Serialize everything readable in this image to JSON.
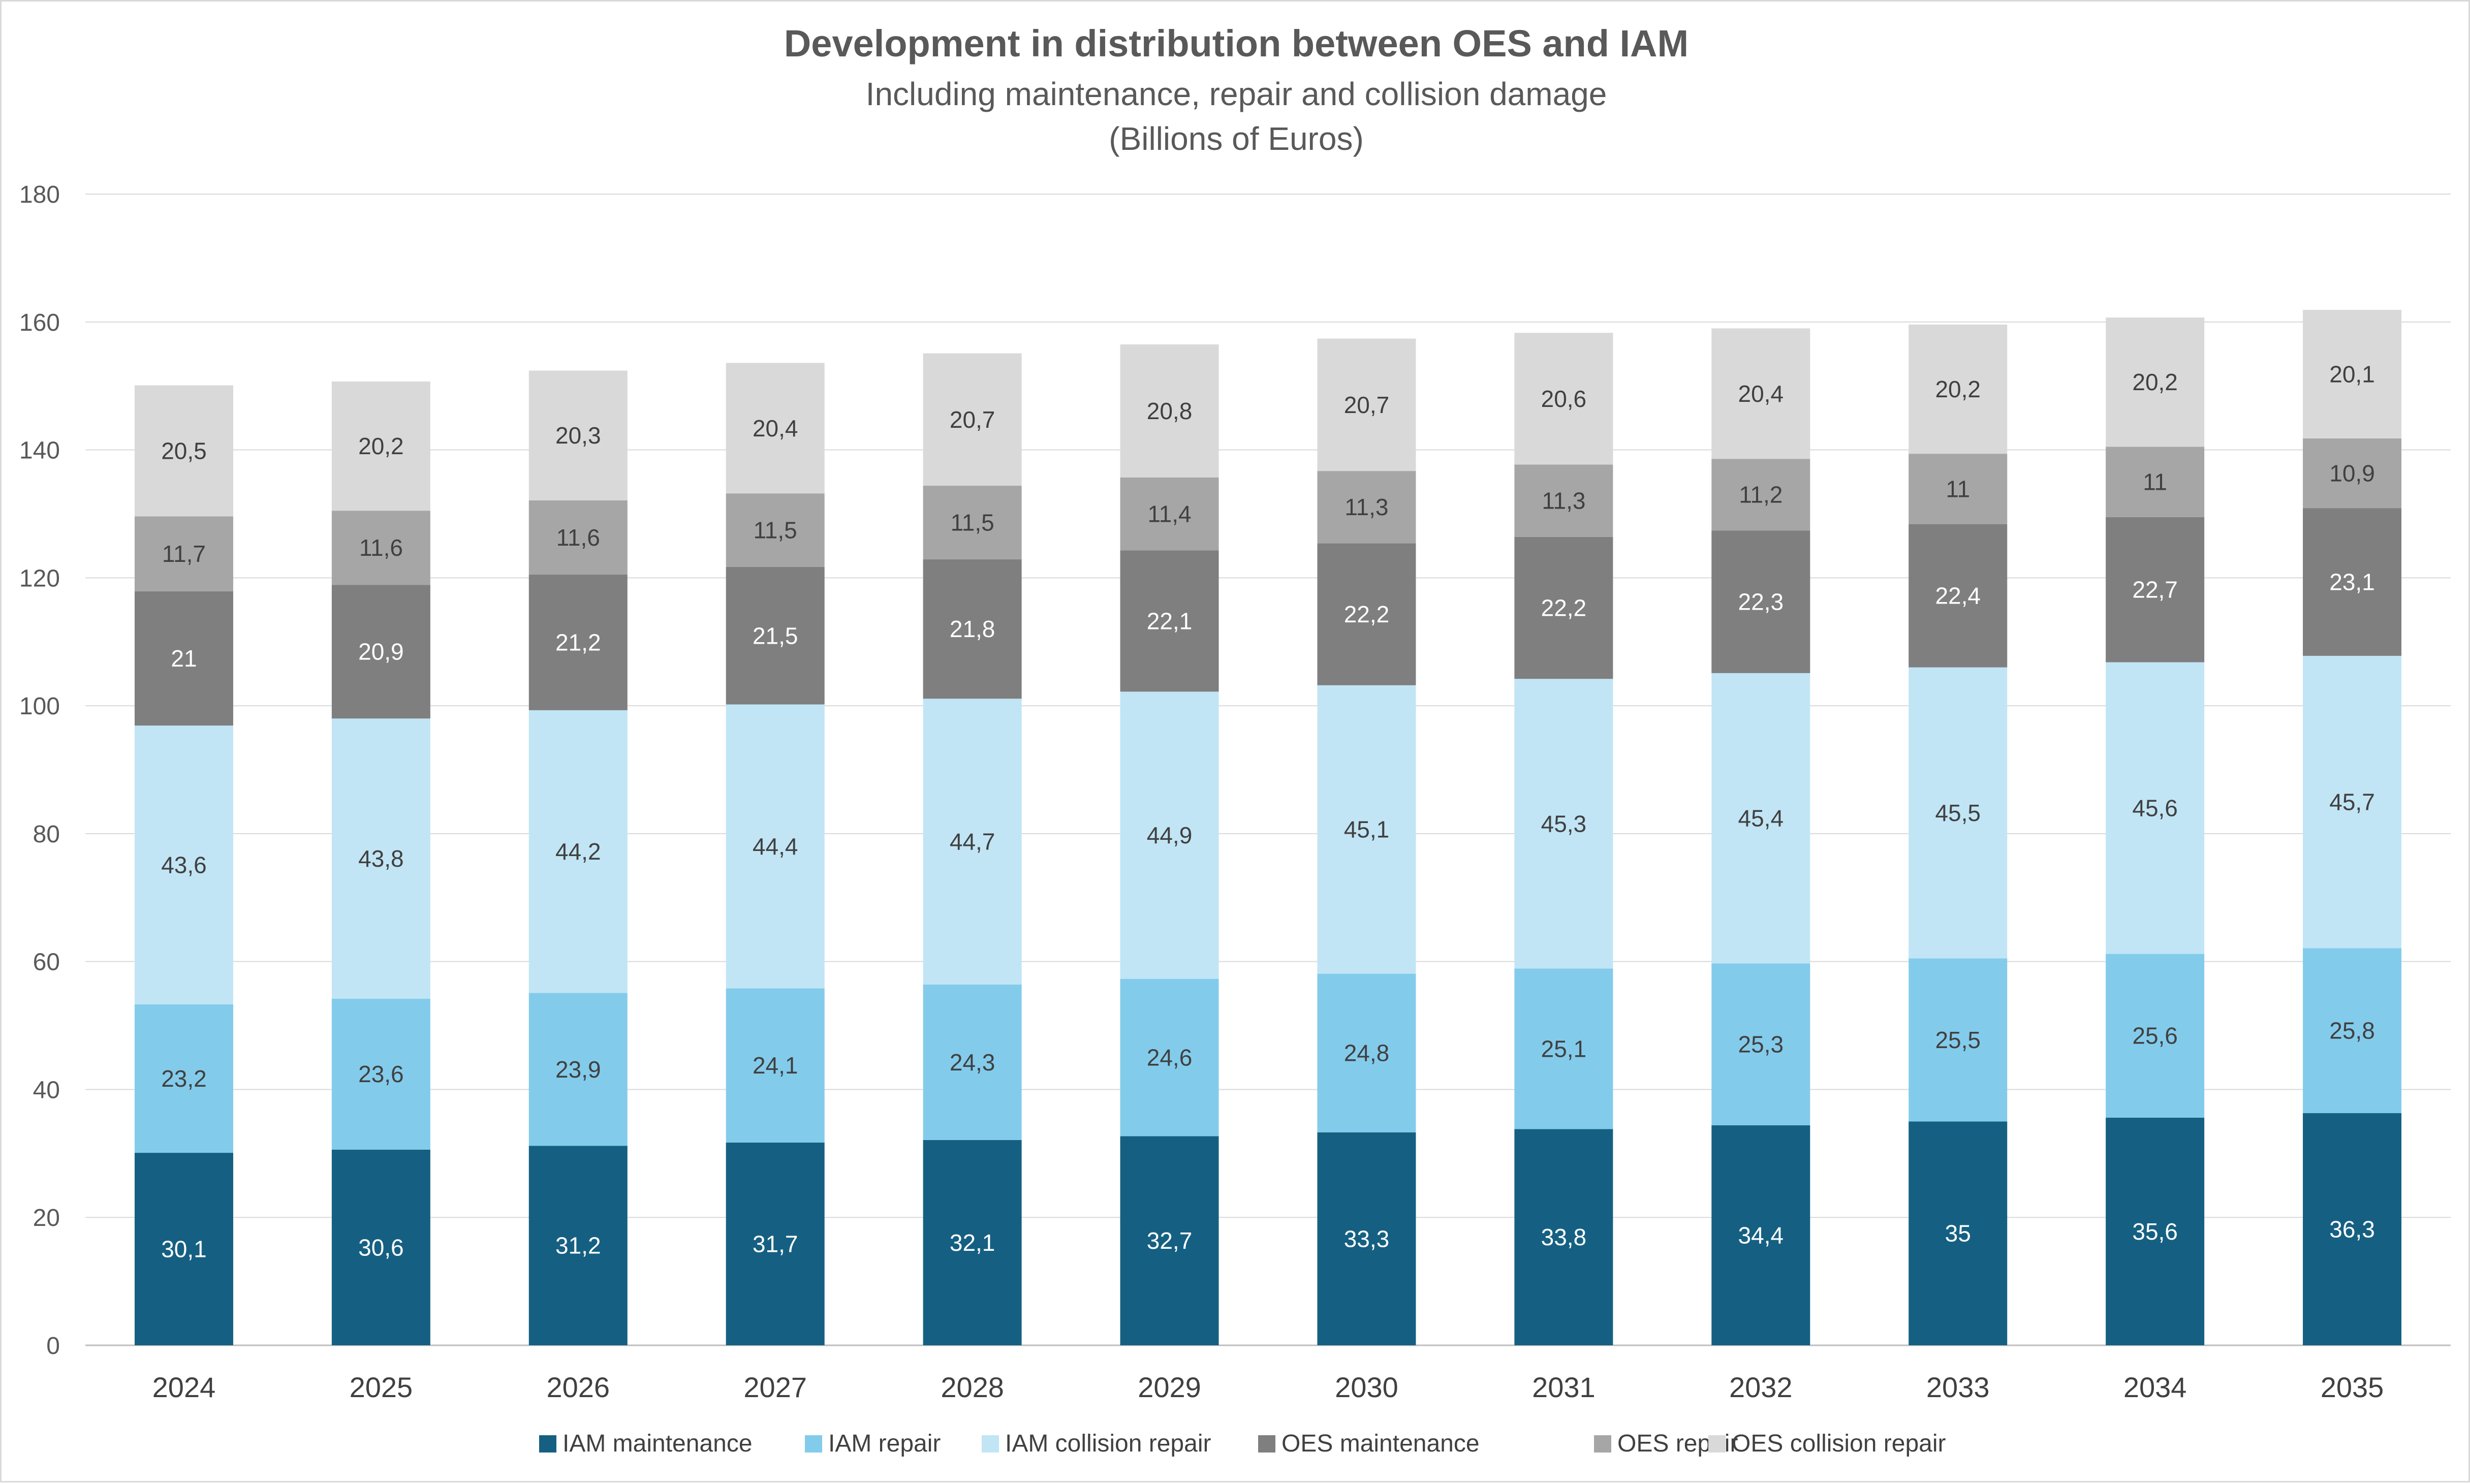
{
  "chart_data": {
    "type": "bar",
    "stacked": true,
    "title": "Development in distribution between OES and IAM",
    "subtitle": [
      "Including maintenance, repair and collision damage",
      "(Billions of Euros)"
    ],
    "xlabel": "",
    "ylabel": "",
    "ylim": [
      0,
      180
    ],
    "yticks": [
      "0",
      "20",
      "40",
      "60",
      "80",
      "100",
      "120",
      "140",
      "160",
      "180"
    ],
    "grid": "horizontal",
    "legend_position": "bottom",
    "categories": [
      "2024",
      "2025",
      "2026",
      "2027",
      "2028",
      "2029",
      "2030",
      "2031",
      "2032",
      "2033",
      "2034",
      "2035"
    ],
    "series": [
      {
        "name": "IAM maintenance",
        "color": "#156082",
        "label_color": "#ffffff",
        "values": [
          30.1,
          30.6,
          31.2,
          31.7,
          32.1,
          32.7,
          33.3,
          33.8,
          34.4,
          35,
          35.6,
          36.3
        ],
        "labels": [
          "30,1",
          "30,6",
          "31,2",
          "31,7",
          "32,1",
          "32,7",
          "33,3",
          "33,8",
          "34,4",
          "35",
          "35,6",
          "36,3"
        ]
      },
      {
        "name": "IAM repair",
        "color": "#83cbeb",
        "label_color": "#404040",
        "values": [
          23.2,
          23.6,
          23.9,
          24.1,
          24.3,
          24.6,
          24.8,
          25.1,
          25.3,
          25.5,
          25.6,
          25.8
        ],
        "labels": [
          "23,2",
          "23,6",
          "23,9",
          "24,1",
          "24,3",
          "24,6",
          "24,8",
          "25,1",
          "25,3",
          "25,5",
          "25,6",
          "25,8"
        ]
      },
      {
        "name": "IAM collision repair",
        "color": "#c1e5f5",
        "label_color": "#404040",
        "values": [
          43.6,
          43.8,
          44.2,
          44.4,
          44.7,
          44.9,
          45.1,
          45.3,
          45.4,
          45.5,
          45.6,
          45.7
        ],
        "labels": [
          "43,6",
          "43,8",
          "44,2",
          "44,4",
          "44,7",
          "44,9",
          "45,1",
          "45,3",
          "45,4",
          "45,5",
          "45,6",
          "45,7"
        ]
      },
      {
        "name": "OES maintenance",
        "color": "#7f7f7f",
        "label_color": "#ffffff",
        "values": [
          21,
          20.9,
          21.2,
          21.5,
          21.8,
          22.1,
          22.2,
          22.2,
          22.3,
          22.4,
          22.7,
          23.1
        ],
        "labels": [
          "21",
          "20,9",
          "21,2",
          "21,5",
          "21,8",
          "22,1",
          "22,2",
          "22,2",
          "22,3",
          "22,4",
          "22,7",
          "23,1"
        ]
      },
      {
        "name": "OES repair",
        "color": "#a6a6a6",
        "label_color": "#404040",
        "values": [
          11.7,
          11.6,
          11.6,
          11.5,
          11.5,
          11.4,
          11.3,
          11.3,
          11.2,
          11,
          11,
          10.9
        ],
        "labels": [
          "11,7",
          "11,6",
          "11,6",
          "11,5",
          "11,5",
          "11,4",
          "11,3",
          "11,3",
          "11,2",
          "11",
          "11",
          "10,9"
        ]
      },
      {
        "name": "OES collision repair",
        "color": "#d9d9d9",
        "label_color": "#404040",
        "values": [
          20.5,
          20.2,
          20.3,
          20.4,
          20.7,
          20.8,
          20.7,
          20.6,
          20.4,
          20.2,
          20.2,
          20.1
        ],
        "labels": [
          "20,5",
          "20,2",
          "20,3",
          "20,4",
          "20,7",
          "20,8",
          "20,7",
          "20,6",
          "20,4",
          "20,2",
          "20,2",
          "20,1"
        ]
      }
    ]
  }
}
